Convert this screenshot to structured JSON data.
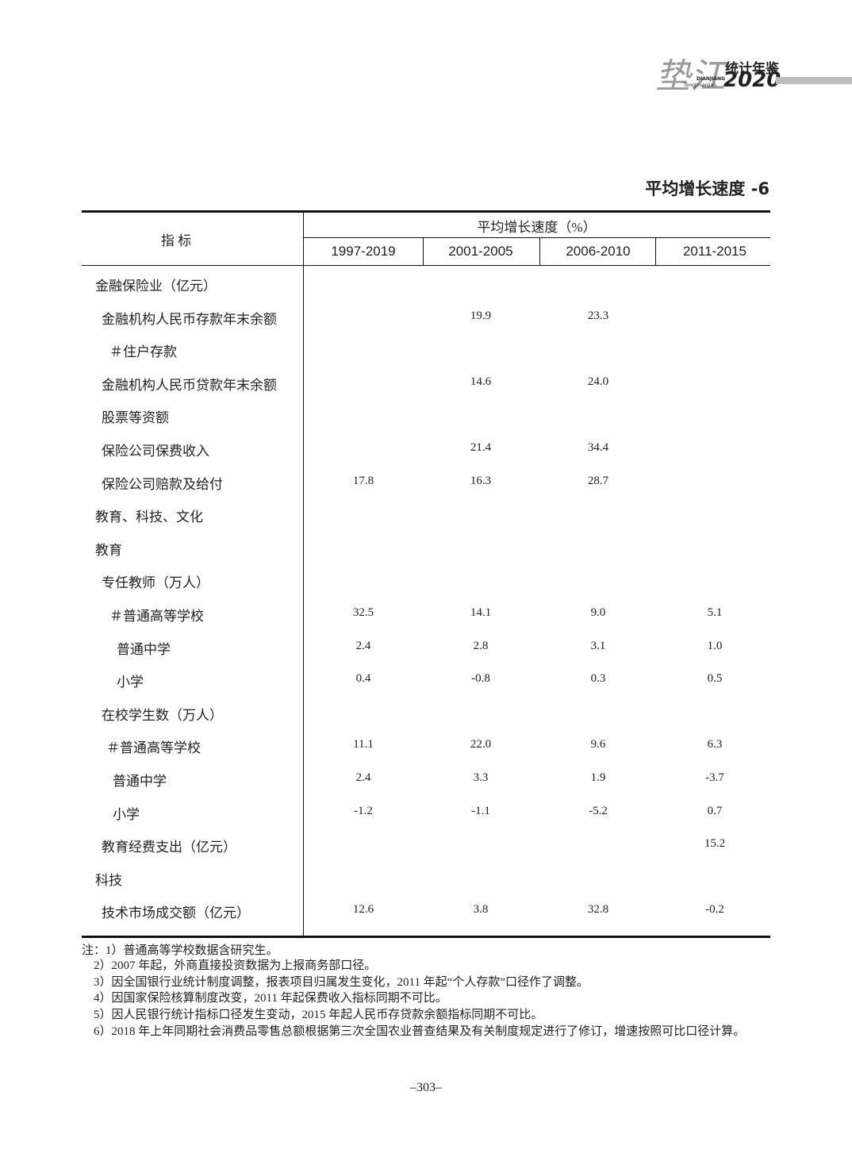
{
  "header": {
    "logo_calligraphy": "垫江",
    "logo_title": "统计年鉴",
    "logo_pinyin_1": "DIANJIANG",
    "logo_pinyin_2": "Tongjinianjian",
    "logo_year": "2020"
  },
  "title": "平均增长速度 -6",
  "table": {
    "stub_header": "指 标",
    "group_header": "平均增长速度（%）",
    "columns": [
      "1997-2019",
      "2001-2005",
      "2006-2010",
      "2011-2015"
    ],
    "rows": [
      [
        "金融保险业（亿元）",
        null,
        null,
        null,
        null
      ],
      [
        "金融机构人民币存款年末余额",
        null,
        "19.9",
        "23.3",
        null
      ],
      [
        "＃住户存款",
        null,
        null,
        null,
        null
      ],
      [
        "金融机构人民币贷款年末余额",
        null,
        "14.6",
        "24.0",
        null
      ],
      [
        "股票等资额",
        null,
        null,
        null,
        null
      ],
      [
        "保险公司保费收入",
        null,
        "21.4",
        "34.4",
        null
      ],
      [
        "保险公司赔款及给付",
        "17.8",
        "16.3",
        "28.7",
        null
      ],
      [
        "教育、科技、文化",
        null,
        null,
        null,
        null
      ],
      [
        "教育",
        null,
        null,
        null,
        null
      ],
      [
        "专任教师（万人）",
        null,
        null,
        null,
        null
      ],
      [
        "＃普通高等学校",
        "32.5",
        "14.1",
        "9.0",
        "5.1"
      ],
      [
        "普通中学",
        "2.4",
        "2.8",
        "3.1",
        "1.0"
      ],
      [
        "小学",
        "0.4",
        "-0.8",
        "0.3",
        "0.5"
      ],
      [
        "在校学生数（万人）",
        null,
        null,
        null,
        null
      ],
      [
        "＃普通高等学校",
        "11.1",
        "22.0",
        "9.6",
        "6.3"
      ],
      [
        "普通中学",
        "2.4",
        "3.3",
        "1.9",
        "-3.7"
      ],
      [
        "小学",
        "-1.2",
        "-1.1",
        "-5.2",
        "0.7"
      ],
      [
        "教育经费支出（亿元）",
        null,
        null,
        null,
        "15.2"
      ],
      [
        "科技",
        null,
        null,
        null,
        null
      ],
      [
        "技术市场成交额（亿元）",
        "12.6",
        "3.8",
        "32.8",
        "-0.2"
      ]
    ]
  },
  "notes": [
    "注：1）普通高等学校数据含研究生。",
    "2）2007 年起，外商直接投资数据为上报商务部口径。",
    "3）因全国银行业统计制度调整，报表项目归属发生变化，2011 年起“个人存款”口径作了调整。",
    "4）因国家保险核算制度改变，2011 年起保费收入指标同期不可比。",
    "5）因人民银行统计指标口径发生变动，2015 年起人民币存贷款余额指标同期不可比。",
    "6）2018 年上年同期社会消费品零售总额根据第三次全国农业普查结果及有关制度规定进行了修订，增速按照可比口径计算。"
  ],
  "page_number": "–303–"
}
